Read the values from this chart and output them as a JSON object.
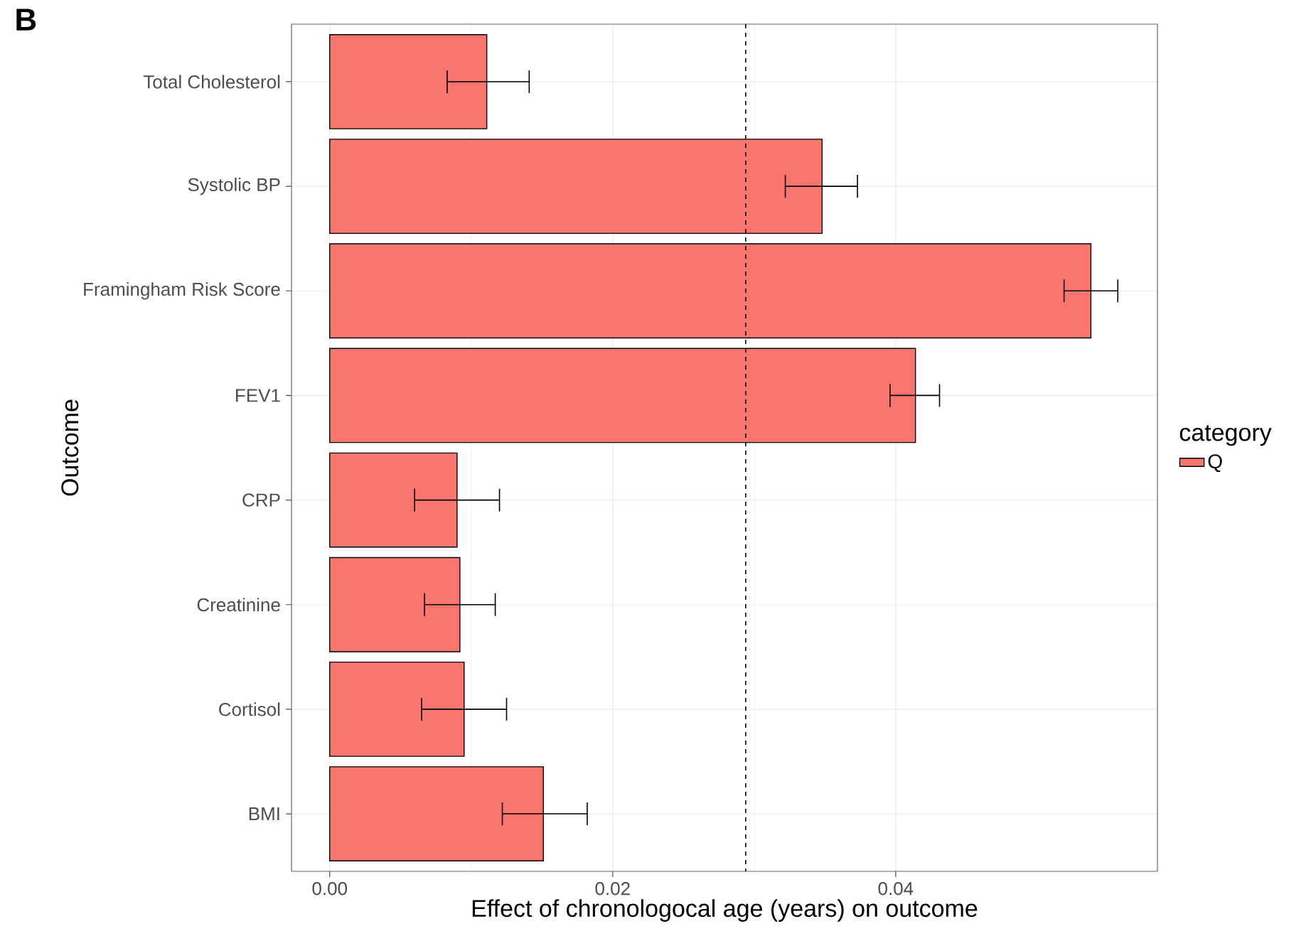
{
  "chart_data": {
    "type": "bar",
    "orientation": "horizontal",
    "title": "B",
    "categories": [
      "Total Cholesterol",
      "Systolic BP",
      "Framingham Risk Score",
      "FEV1",
      "CRP",
      "Creatinine",
      "Cortisol",
      "BMI"
    ],
    "series": [
      {
        "name": "Q",
        "color": "#f8766d",
        "values": [
          0.0111,
          0.0348,
          0.0538,
          0.0414,
          0.009,
          0.0092,
          0.0095,
          0.0151
        ],
        "errors": [
          [
            0.0083,
            0.0141
          ],
          [
            0.0322,
            0.0373
          ],
          [
            0.0519,
            0.0557
          ],
          [
            0.0396,
            0.0431
          ],
          [
            0.006,
            0.012
          ],
          [
            0.0067,
            0.0117
          ],
          [
            0.0065,
            0.0125
          ],
          [
            0.0122,
            0.0182
          ]
        ]
      }
    ],
    "xlabel": "Effect of chronologocal age (years) on outcome",
    "ylabel": "Outcome",
    "xlim": [
      -0.0027,
      0.0585
    ],
    "xticks": [
      {
        "value": 0,
        "label": "0.00"
      },
      {
        "value": 0.02,
        "label": "0.02"
      },
      {
        "value": 0.04,
        "label": "0.04"
      }
    ],
    "ref_lines": [
      {
        "axis": "x",
        "value": 0.0294,
        "line_style": "dashed"
      }
    ],
    "grid": true,
    "legend": "right",
    "legend_title": "category"
  }
}
